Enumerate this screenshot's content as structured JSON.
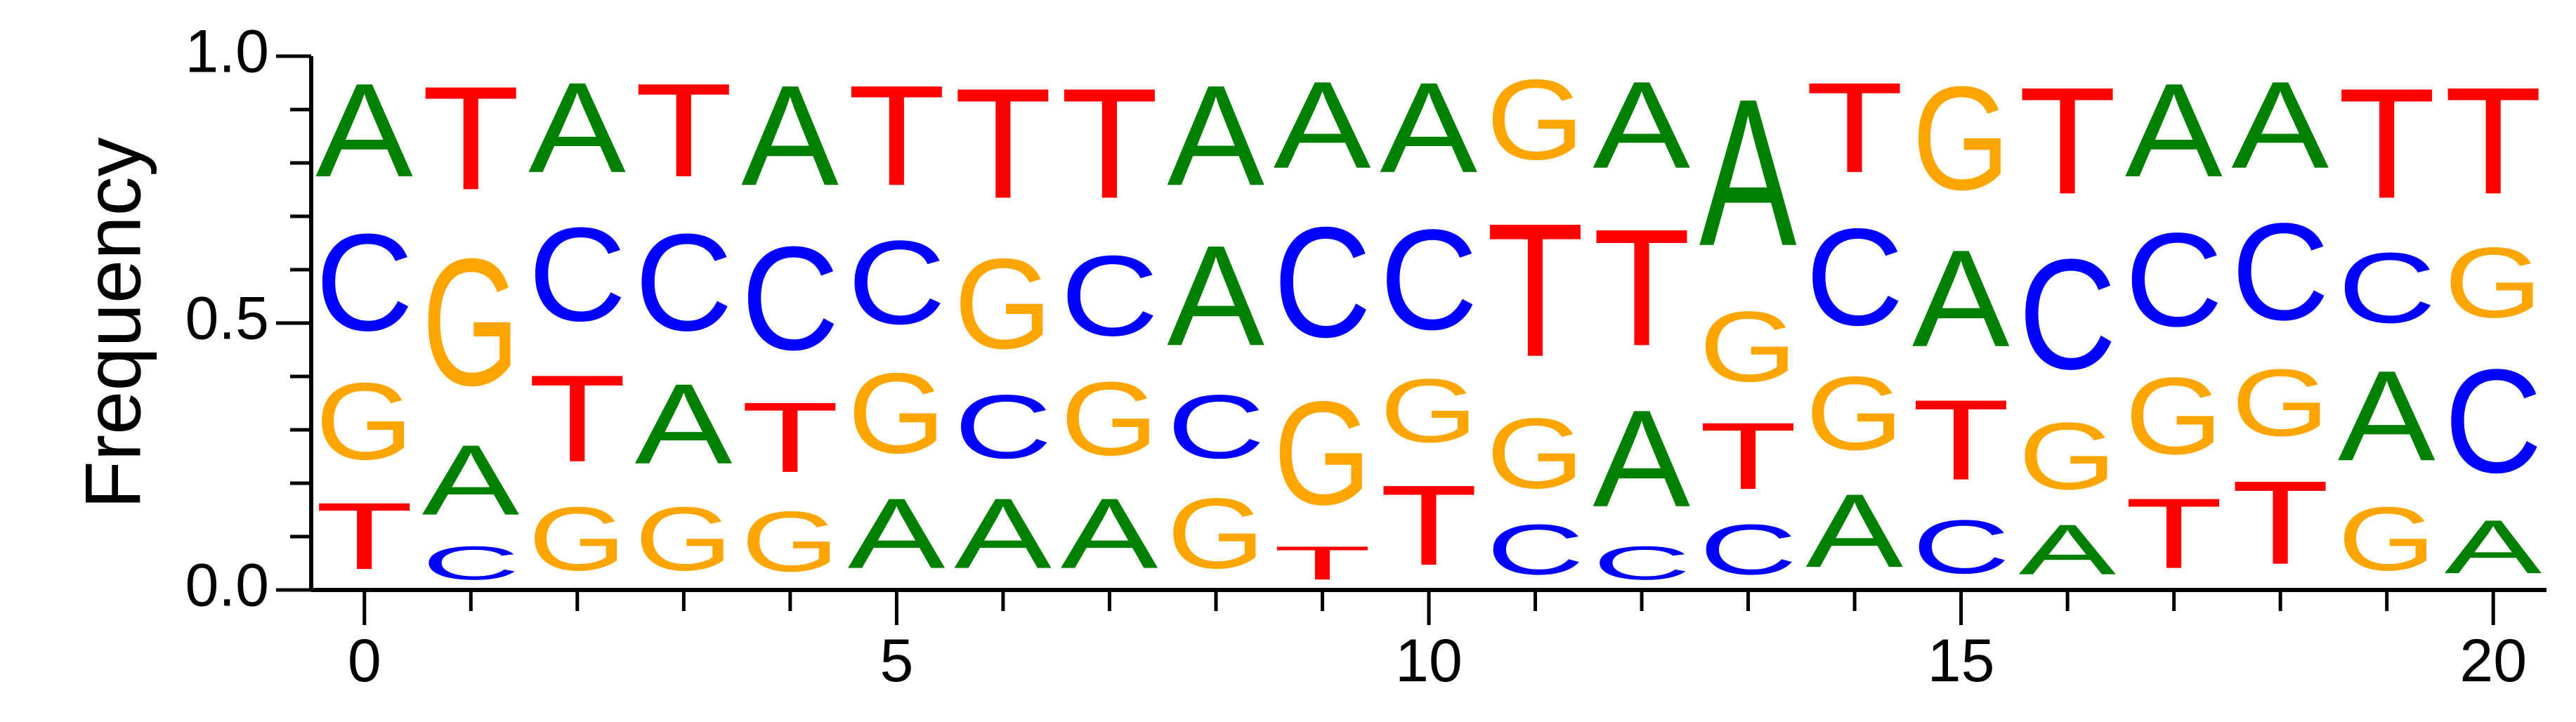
{
  "chart_data": {
    "type": "sequence-logo",
    "title": "",
    "xlabel": "",
    "ylabel": "Frequency",
    "xlim": [
      -0.5,
      20.5
    ],
    "ylim": [
      0,
      1
    ],
    "x_ticks": [
      "0",
      "5",
      "10",
      "15",
      "20"
    ],
    "y_ticks": [
      "0.0",
      "0.5",
      "1.0"
    ],
    "colors": {
      "A": "#008000",
      "C": "#0000ff",
      "G": "#ffa500",
      "T": "#ff0000"
    },
    "positions": [
      {
        "x": 0,
        "stack": [
          [
            "T",
            0.2
          ],
          [
            "G",
            0.23
          ],
          [
            "C",
            0.29
          ],
          [
            "A",
            0.28
          ]
        ]
      },
      {
        "x": 1,
        "stack": [
          [
            "C",
            0.1
          ],
          [
            "A",
            0.21
          ],
          [
            "G",
            0.38
          ],
          [
            "T",
            0.31
          ]
        ]
      },
      {
        "x": 2,
        "stack": [
          [
            "G",
            0.19
          ],
          [
            "T",
            0.26
          ],
          [
            "C",
            0.28
          ],
          [
            "A",
            0.27
          ]
        ]
      },
      {
        "x": 3,
        "stack": [
          [
            "G",
            0.19
          ],
          [
            "A",
            0.24
          ],
          [
            "C",
            0.29
          ],
          [
            "T",
            0.28
          ]
        ]
      },
      {
        "x": 4,
        "stack": [
          [
            "G",
            0.18
          ],
          [
            "T",
            0.21
          ],
          [
            "C",
            0.31
          ],
          [
            "A",
            0.3
          ]
        ]
      },
      {
        "x": 5,
        "stack": [
          [
            "A",
            0.21
          ],
          [
            "G",
            0.24
          ],
          [
            "C",
            0.25
          ],
          [
            "T",
            0.3
          ]
        ]
      },
      {
        "x": 6,
        "stack": [
          [
            "A",
            0.21
          ],
          [
            "C",
            0.19
          ],
          [
            "G",
            0.27
          ],
          [
            "T",
            0.33
          ]
        ]
      },
      {
        "x": 7,
        "stack": [
          [
            "A",
            0.21
          ],
          [
            "G",
            0.22
          ],
          [
            "C",
            0.24
          ],
          [
            "T",
            0.33
          ]
        ]
      },
      {
        "x": 8,
        "stack": [
          [
            "G",
            0.21
          ],
          [
            "C",
            0.19
          ],
          [
            "A",
            0.3
          ],
          [
            "A",
            0.3
          ]
        ]
      },
      {
        "x": 9,
        "stack": [
          [
            "T",
            0.1
          ],
          [
            "G",
            0.31
          ],
          [
            "C",
            0.33
          ],
          [
            "A",
            0.26
          ]
        ]
      },
      {
        "x": 10,
        "stack": [
          [
            "T",
            0.24
          ],
          [
            "G",
            0.19
          ],
          [
            "C",
            0.3
          ],
          [
            "A",
            0.27
          ]
        ]
      },
      {
        "x": 11,
        "stack": [
          [
            "C",
            0.15
          ],
          [
            "G",
            0.21
          ],
          [
            "T",
            0.4
          ],
          [
            "G",
            0.24
          ]
        ]
      },
      {
        "x": 12,
        "stack": [
          [
            "C",
            0.1
          ],
          [
            "A",
            0.29
          ],
          [
            "T",
            0.35
          ],
          [
            "A",
            0.26
          ]
        ]
      },
      {
        "x": 13,
        "stack": [
          [
            "C",
            0.15
          ],
          [
            "T",
            0.2
          ],
          [
            "G",
            0.21
          ],
          [
            "A",
            0.44
          ]
        ]
      },
      {
        "x": 14,
        "stack": [
          [
            "A",
            0.22
          ],
          [
            "G",
            0.22
          ],
          [
            "C",
            0.29
          ],
          [
            "T",
            0.27
          ]
        ]
      },
      {
        "x": 15,
        "stack": [
          [
            "C",
            0.16
          ],
          [
            "T",
            0.24
          ],
          [
            "A",
            0.29
          ],
          [
            "G",
            0.31
          ]
        ]
      },
      {
        "x": 16,
        "stack": [
          [
            "A",
            0.15
          ],
          [
            "G",
            0.2
          ],
          [
            "C",
            0.33
          ],
          [
            "T",
            0.32
          ]
        ]
      },
      {
        "x": 17,
        "stack": [
          [
            "T",
            0.21
          ],
          [
            "G",
            0.23
          ],
          [
            "C",
            0.28
          ],
          [
            "A",
            0.28
          ]
        ]
      },
      {
        "x": 18,
        "stack": [
          [
            "T",
            0.25
          ],
          [
            "G",
            0.2
          ],
          [
            "C",
            0.29
          ],
          [
            "A",
            0.26
          ]
        ]
      },
      {
        "x": 19,
        "stack": [
          [
            "G",
            0.19
          ],
          [
            "A",
            0.27
          ],
          [
            "C",
            0.21
          ],
          [
            "T",
            0.33
          ]
        ]
      },
      {
        "x": 20,
        "stack": [
          [
            "A",
            0.16
          ],
          [
            "C",
            0.31
          ],
          [
            "G",
            0.21
          ],
          [
            "T",
            0.32
          ]
        ]
      }
    ]
  }
}
